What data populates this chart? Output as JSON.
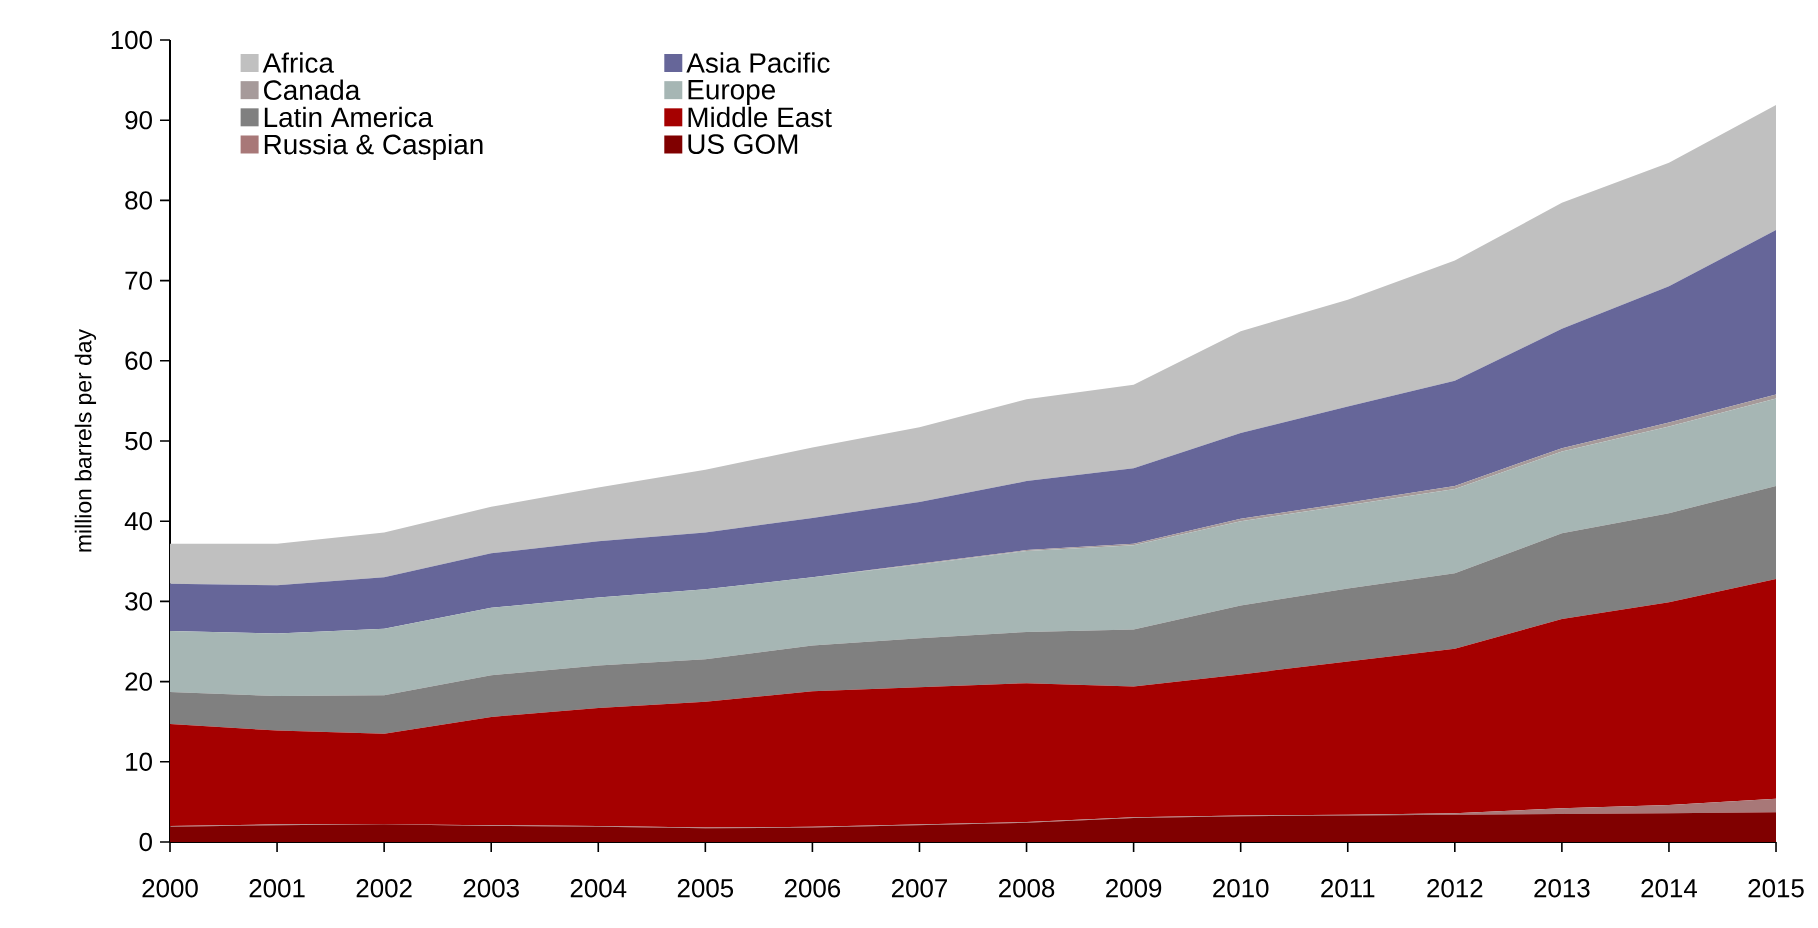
{
  "chart_data": {
    "type": "area",
    "stacked": true,
    "ylabel": "million barrels per day",
    "legend": "top left",
    "x": [
      2000,
      2001,
      2002,
      2003,
      2004,
      2005,
      2006,
      2007,
      2008,
      2009,
      2010,
      2011,
      2012,
      2013,
      2014,
      2015
    ],
    "xlim": [
      2000,
      2015
    ],
    "xticks": [
      2000,
      2001,
      2002,
      2003,
      2004,
      2005,
      2006,
      2007,
      2008,
      2009,
      2010,
      2011,
      2012,
      2013,
      2014,
      2015
    ],
    "ylim": [
      0,
      100
    ],
    "yticks": [
      0,
      10,
      20,
      30,
      40,
      50,
      60,
      70,
      80,
      90,
      100
    ],
    "series": [
      {
        "name": "US GOM",
        "color": "#800000",
        "values": [
          1.9,
          2.1,
          2.2,
          2.0,
          1.9,
          1.7,
          1.8,
          2.1,
          2.4,
          3.0,
          3.2,
          3.3,
          3.4,
          3.5,
          3.6,
          3.7
        ]
      },
      {
        "name": "Russia & Caspian",
        "color": "#a87878",
        "values": [
          0.1,
          0.1,
          0,
          0.1,
          0.1,
          0.1,
          0.1,
          0.1,
          0.1,
          0.1,
          0.1,
          0.1,
          0.2,
          0.7,
          1.0,
          1.7
        ]
      },
      {
        "name": "Middle East",
        "color": "#a50000",
        "values": [
          12.7,
          11.7,
          11.3,
          13.5,
          14.7,
          15.7,
          16.9,
          17.1,
          17.3,
          16.3,
          17.6,
          19.1,
          20.5,
          23.6,
          25.3,
          27.4
        ]
      },
      {
        "name": "Latin America",
        "color": "#808080",
        "values": [
          4.0,
          4.3,
          4.8,
          5.2,
          5.3,
          5.3,
          5.7,
          6.1,
          6.4,
          7.1,
          8.6,
          9.1,
          9.4,
          10.7,
          11.1,
          11.6
        ]
      },
      {
        "name": "Europe",
        "color": "#a6b6b4",
        "values": [
          7.6,
          7.8,
          8.3,
          8.4,
          8.5,
          8.7,
          8.5,
          9.2,
          10.1,
          10.5,
          10.5,
          10.4,
          10.5,
          10.2,
          10.8,
          10.9
        ]
      },
      {
        "name": "Canada",
        "color": "#a69a9a",
        "values": [
          0,
          0,
          0,
          0,
          0,
          0,
          0,
          0.1,
          0.1,
          0.2,
          0.3,
          0.3,
          0.4,
          0.4,
          0.5,
          0.5
        ]
      },
      {
        "name": "Asia Pacific",
        "color": "#666699",
        "values": [
          5.9,
          6.0,
          6.4,
          6.8,
          7.0,
          7.1,
          7.4,
          7.7,
          8.6,
          9.4,
          10.7,
          12.0,
          13.1,
          14.9,
          17.0,
          20.5
        ]
      },
      {
        "name": "Africa",
        "color": "#c0c0c0",
        "values": [
          5.0,
          5.2,
          5.6,
          5.8,
          6.7,
          7.8,
          8.8,
          9.3,
          10.2,
          10.4,
          12.7,
          13.3,
          15.0,
          15.7,
          15.4,
          15.6
        ]
      }
    ]
  }
}
